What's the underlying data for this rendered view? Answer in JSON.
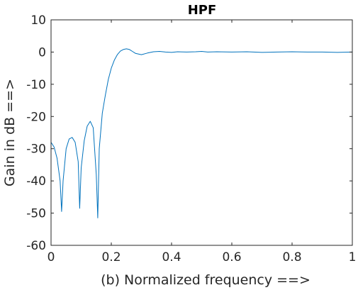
{
  "chart_data": {
    "type": "line",
    "title": "HPF",
    "xlabel": "(b) Normalized frequency ==>",
    "ylabel": "Gain in dB ==>",
    "xlim": [
      0,
      1
    ],
    "ylim": [
      -60,
      10
    ],
    "grid": false,
    "legend": "none",
    "x_ticks": [
      "0",
      "0.2",
      "0.4",
      "0.6",
      "0.8",
      "1"
    ],
    "y_ticks": [
      "10",
      "0",
      "-10",
      "-20",
      "-30",
      "-40",
      "-50",
      "-60"
    ],
    "series": [
      {
        "color": "#0072bd",
        "x": [
          0.0,
          0.01,
          0.02,
          0.03,
          0.035,
          0.04,
          0.05,
          0.06,
          0.07,
          0.08,
          0.09,
          0.095,
          0.1,
          0.11,
          0.12,
          0.13,
          0.14,
          0.15,
          0.155,
          0.16,
          0.17,
          0.18,
          0.19,
          0.2,
          0.21,
          0.22,
          0.23,
          0.24,
          0.25,
          0.26,
          0.27,
          0.28,
          0.3,
          0.32,
          0.34,
          0.36,
          0.38,
          0.4,
          0.42,
          0.45,
          0.48,
          0.5,
          0.52,
          0.55,
          0.6,
          0.65,
          0.7,
          0.75,
          0.8,
          0.85,
          0.9,
          0.95,
          1.0
        ],
        "y": [
          -28.0,
          -29.5,
          -33.0,
          -40.0,
          -49.5,
          -40.0,
          -30.0,
          -27.0,
          -26.5,
          -28.0,
          -34.0,
          -48.5,
          -36.0,
          -27.5,
          -23.0,
          -21.5,
          -23.5,
          -38.0,
          -51.5,
          -30.0,
          -19.0,
          -13.5,
          -8.5,
          -5.0,
          -2.5,
          -0.8,
          0.3,
          0.8,
          1.0,
          0.8,
          0.2,
          -0.4,
          -0.8,
          -0.3,
          0.1,
          0.2,
          0.0,
          -0.1,
          0.1,
          0.0,
          0.1,
          0.2,
          0.0,
          0.1,
          0.0,
          0.1,
          -0.1,
          0.0,
          0.1,
          0.0,
          0.0,
          -0.1,
          0.0
        ]
      }
    ]
  }
}
